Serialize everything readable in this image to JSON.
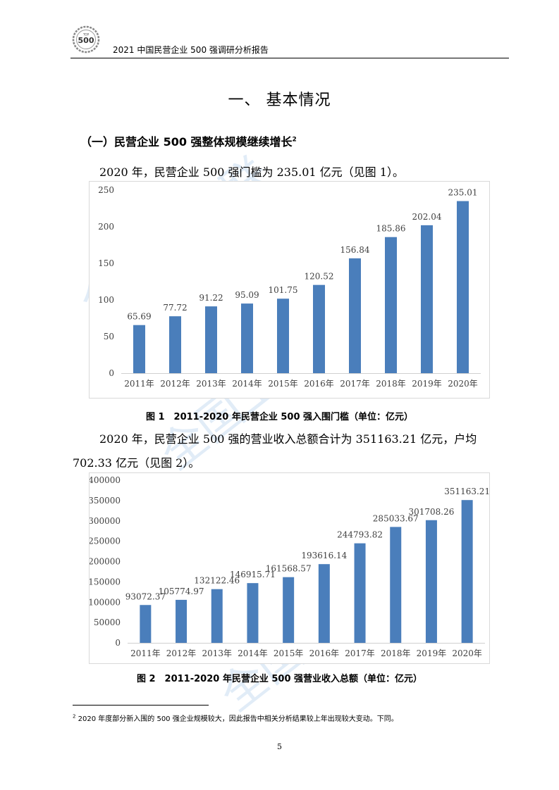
{
  "header": {
    "logo_text_top": "TOP",
    "logo_text_main": "500",
    "title": "2021 中国民营企业 500 强调研分析报告"
  },
  "section_title": "一、 基本情况",
  "subsection": {
    "text": "（一）民营企业 500 强整体规模继续增长",
    "sup": "2"
  },
  "paragraphs": {
    "p1": "2020 年，民营企业 500 强门槛为 235.01 亿元（见图 1）。",
    "p2a": "2020 年，民营企业 500 强的营业收入总额合计为 351163.21 亿元，户均",
    "p2b": "702.33 亿元（见图 2）。"
  },
  "captions": {
    "fig1": "图 1　2011-2020 年民营企业 500 强入围门槛（单位：亿元）",
    "fig2": "图 2　2011-2020 年民营企业 500 强营业收入总额（单位：亿元）"
  },
  "footnote": {
    "sup": "2",
    "text": "2020 年度部分新入围的 500 强企业规模较大，因此报告中相关分析结果较上年出现较大变动。下同。"
  },
  "page_number": "5",
  "watermark": "全国工商联",
  "chart_data": [
    {
      "type": "bar",
      "categories": [
        "2011年",
        "2012年",
        "2013年",
        "2014年",
        "2015年",
        "2016年",
        "2017年",
        "2018年",
        "2019年",
        "2020年"
      ],
      "values": [
        65.69,
        77.72,
        91.22,
        95.09,
        101.75,
        120.52,
        156.84,
        185.86,
        202.04,
        235.01
      ],
      "labels": [
        "65.69",
        "77.72",
        "91.22",
        "95.09",
        "101.75",
        "120.52",
        "156.84",
        "185.86",
        "202.04",
        "235.01"
      ],
      "ylim": [
        0,
        250
      ],
      "yticks": [
        0,
        50,
        100,
        150,
        200,
        250
      ],
      "ytick_labels": [
        "0",
        "50",
        "100",
        "150",
        "200",
        "250"
      ],
      "color": "#4a7ebb",
      "grid": false
    },
    {
      "type": "bar",
      "categories": [
        "2011年",
        "2012年",
        "2013年",
        "2014年",
        "2015年",
        "2016年",
        "2017年",
        "2018年",
        "2019年",
        "2020年"
      ],
      "values": [
        93072.37,
        105774.97,
        132122.46,
        146915.71,
        161568.57,
        193616.14,
        244793.82,
        285033.67,
        301708.26,
        351163.21
      ],
      "labels": [
        "93072.37",
        "105774.97",
        "132122.46",
        "146915.71",
        "161568.57",
        "193616.14",
        "244793.82",
        "285033.67",
        "301708.26",
        "351163.21"
      ],
      "ylim": [
        0,
        400000
      ],
      "yticks": [
        0,
        50000,
        100000,
        150000,
        200000,
        250000,
        300000,
        350000,
        400000
      ],
      "ytick_labels": [
        "0",
        "50000",
        "100000",
        "150000",
        "200000",
        "250000",
        "300000",
        "350000",
        "400000"
      ],
      "color": "#4a7ebb",
      "grid": false
    }
  ]
}
